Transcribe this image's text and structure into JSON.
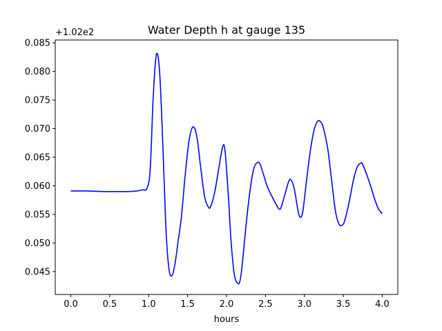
{
  "chart_data": {
    "type": "line",
    "title": "Water Depth h at gauge 135",
    "xlabel": "hours",
    "ylabel": "",
    "offset_label": "+1.02e2",
    "xlim": [
      -0.2,
      4.2
    ],
    "ylim": [
      0.041,
      0.0855
    ],
    "x_ticks": [
      0.0,
      0.5,
      1.0,
      1.5,
      2.0,
      2.5,
      3.0,
      3.5,
      4.0
    ],
    "x_tick_labels": [
      "0.0",
      "0.5",
      "1.0",
      "1.5",
      "2.0",
      "2.5",
      "3.0",
      "3.5",
      "4.0"
    ],
    "y_ticks": [
      0.045,
      0.05,
      0.055,
      0.06,
      0.065,
      0.07,
      0.075,
      0.08,
      0.085
    ],
    "y_tick_labels": [
      "0.045",
      "0.050",
      "0.055",
      "0.060",
      "0.065",
      "0.070",
      "0.075",
      "0.080",
      "0.085"
    ],
    "grid": false,
    "line_color": "#0000ff",
    "series": [
      {
        "x": [
          0.0,
          0.2,
          0.4,
          0.6,
          0.75,
          0.85,
          0.92,
          0.98,
          1.02,
          1.06,
          1.1,
          1.14,
          1.18,
          1.22,
          1.26,
          1.3,
          1.34,
          1.38,
          1.42,
          1.47,
          1.52,
          1.57,
          1.62,
          1.67,
          1.72,
          1.77,
          1.8,
          1.85,
          1.9,
          1.95,
          1.98,
          2.02,
          2.06,
          2.1,
          2.14,
          2.17,
          2.2,
          2.25,
          2.3,
          2.35,
          2.4,
          2.43,
          2.47,
          2.52,
          2.57,
          2.62,
          2.67,
          2.7,
          2.75,
          2.8,
          2.83,
          2.87,
          2.92,
          2.95,
          2.98,
          3.02,
          3.07,
          3.12,
          3.17,
          3.22,
          3.25,
          3.3,
          3.35,
          3.4,
          3.45,
          3.5,
          3.53,
          3.58,
          3.63,
          3.68,
          3.73,
          3.75,
          3.8,
          3.85,
          3.9,
          3.95,
          4.0
        ],
        "y": [
          0.0591,
          0.0591,
          0.059,
          0.059,
          0.059,
          0.0591,
          0.0593,
          0.0596,
          0.063,
          0.076,
          0.083,
          0.08,
          0.068,
          0.053,
          0.0455,
          0.0443,
          0.0465,
          0.0505,
          0.0545,
          0.062,
          0.068,
          0.0703,
          0.0685,
          0.063,
          0.058,
          0.0562,
          0.0565,
          0.059,
          0.063,
          0.0668,
          0.0662,
          0.059,
          0.05,
          0.0445,
          0.043,
          0.0432,
          0.046,
          0.053,
          0.059,
          0.063,
          0.0641,
          0.0638,
          0.0622,
          0.06,
          0.0585,
          0.0572,
          0.056,
          0.0562,
          0.0585,
          0.0608,
          0.061,
          0.0595,
          0.0555,
          0.0545,
          0.0555,
          0.06,
          0.0655,
          0.0695,
          0.0713,
          0.071,
          0.0698,
          0.0665,
          0.061,
          0.0555,
          0.0532,
          0.0533,
          0.0545,
          0.0575,
          0.061,
          0.0633,
          0.064,
          0.0637,
          0.062,
          0.06,
          0.0578,
          0.056,
          0.0551
        ]
      }
    ]
  }
}
